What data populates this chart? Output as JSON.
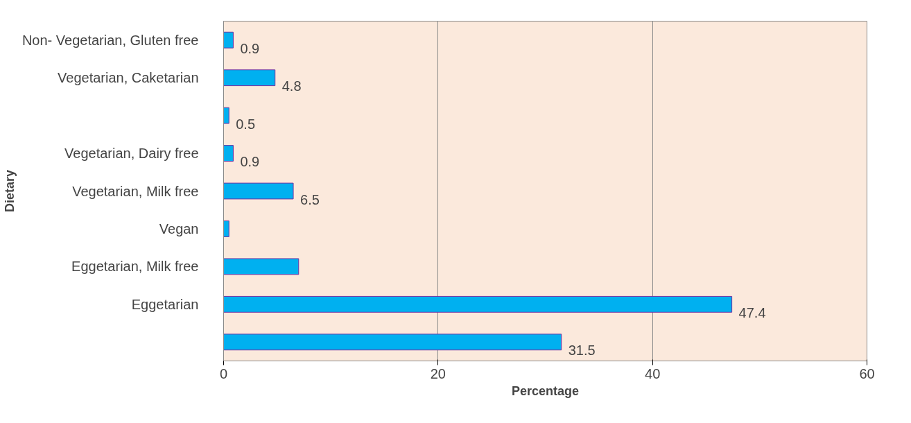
{
  "chart_data": {
    "type": "bar",
    "orientation": "horizontal",
    "xlabel": "Percentage",
    "ylabel": "Dietary",
    "categories": [
      "Non- Vegetarian, Gluten free",
      "Vegetarian, Caketarian",
      null,
      "Vegetarian, Dairy free",
      "Vegetarian, Milk free",
      "Vegan",
      "Eggetarian, Milk free",
      "Eggetarian",
      null
    ],
    "values": [
      0.9,
      4.8,
      0.5,
      0.9,
      6.5,
      0.5,
      7.0,
      47.4,
      31.5
    ],
    "value_labels": [
      "0.9",
      "4.8",
      "0.5",
      "0.9",
      "6.5",
      null,
      null,
      "47.4",
      "31.5"
    ],
    "color": "#00b0f0",
    "xlim": [
      0,
      60
    ],
    "xticks": [
      0,
      20,
      40,
      60
    ],
    "grid": "x"
  }
}
